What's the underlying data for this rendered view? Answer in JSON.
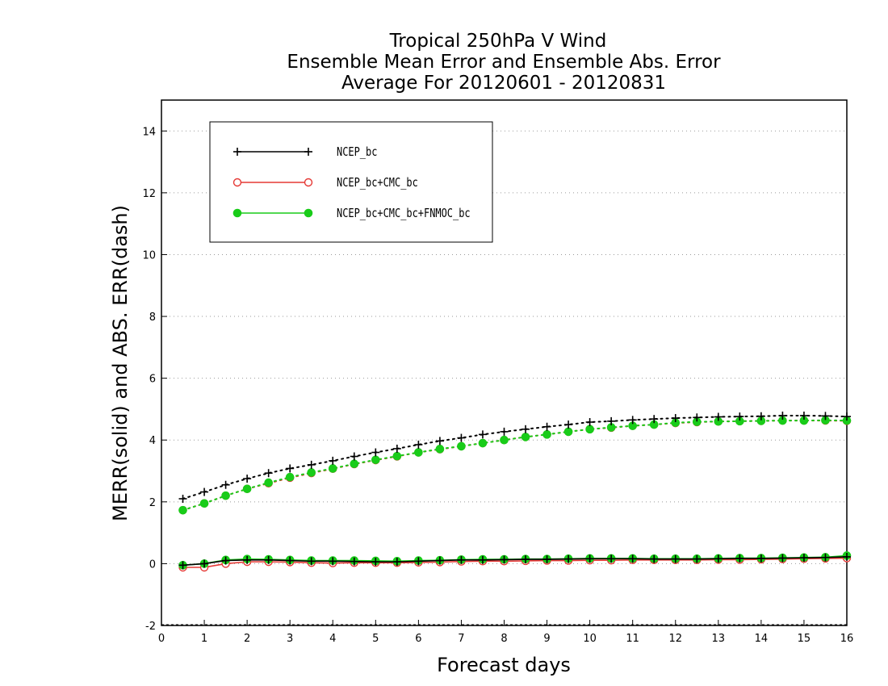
{
  "chart_data": {
    "type": "line",
    "title": [
      "Tropical 250hPa V Wind",
      "Ensemble Mean Error and Ensemble Abs. Error",
      "Average For 20120601 - 20120831"
    ],
    "xlabel": "Forecast days",
    "ylabel": "MERR(solid) and ABS. ERR(dash)",
    "xlim": [
      0,
      16
    ],
    "ylim": [
      -2,
      15
    ],
    "xticks": [
      0,
      1,
      2,
      3,
      4,
      5,
      6,
      7,
      8,
      9,
      10,
      11,
      12,
      13,
      14,
      15,
      16
    ],
    "yticks": [
      -2,
      0,
      2,
      4,
      6,
      8,
      10,
      12,
      14
    ],
    "grid": "horizontal dotted",
    "legend_position": "top-left",
    "x": [
      0.5,
      1,
      1.5,
      2,
      2.5,
      3,
      3.5,
      4,
      4.5,
      5,
      5.5,
      6,
      6.5,
      7,
      7.5,
      8,
      8.5,
      9,
      9.5,
      10,
      10.5,
      11,
      11.5,
      12,
      12.5,
      13,
      13.5,
      14,
      14.5,
      15,
      15.5,
      16
    ],
    "series": [
      {
        "name": "NCEP_bc",
        "color": "#000000",
        "marker": "plus",
        "merr": [
          -0.05,
          0.0,
          0.1,
          0.12,
          0.12,
          0.1,
          0.08,
          0.08,
          0.07,
          0.06,
          0.06,
          0.08,
          0.1,
          0.12,
          0.12,
          0.13,
          0.14,
          0.14,
          0.15,
          0.16,
          0.16,
          0.16,
          0.15,
          0.15,
          0.15,
          0.16,
          0.17,
          0.17,
          0.18,
          0.19,
          0.2,
          0.22
        ],
        "abs_err": [
          2.1,
          2.32,
          2.55,
          2.75,
          2.93,
          3.08,
          3.2,
          3.33,
          3.47,
          3.6,
          3.72,
          3.85,
          3.97,
          4.07,
          4.18,
          4.27,
          4.35,
          4.43,
          4.5,
          4.58,
          4.61,
          4.65,
          4.68,
          4.71,
          4.73,
          4.75,
          4.76,
          4.77,
          4.79,
          4.79,
          4.78,
          4.76
        ]
      },
      {
        "name": "NCEP_bc+CMC_bc",
        "color": "#e53935",
        "marker": "open-circle",
        "merr": [
          -0.12,
          -0.12,
          0.0,
          0.06,
          0.06,
          0.05,
          0.03,
          0.02,
          0.03,
          0.03,
          0.03,
          0.04,
          0.05,
          0.07,
          0.08,
          0.08,
          0.09,
          0.1,
          0.1,
          0.11,
          0.11,
          0.12,
          0.12,
          0.12,
          0.12,
          0.13,
          0.13,
          0.14,
          0.15,
          0.16,
          0.17,
          0.18
        ],
        "abs_err": [
          1.73,
          1.95,
          2.2,
          2.42,
          2.6,
          2.78,
          2.93,
          3.07,
          3.22,
          3.35,
          3.47,
          3.6,
          3.7,
          3.8,
          3.9,
          4.0,
          4.1,
          4.18,
          4.27,
          4.35,
          4.4,
          4.46,
          4.5,
          4.55,
          4.58,
          4.6,
          4.61,
          4.62,
          4.63,
          4.63,
          4.63,
          4.62
        ]
      },
      {
        "name": "NCEP_bc+CMC_bc+FNMOC_bc",
        "color": "#19cc19",
        "marker": "filled-circle",
        "merr": [
          -0.05,
          0.0,
          0.12,
          0.15,
          0.14,
          0.12,
          0.1,
          0.1,
          0.1,
          0.09,
          0.08,
          0.1,
          0.11,
          0.13,
          0.14,
          0.14,
          0.15,
          0.15,
          0.16,
          0.17,
          0.17,
          0.17,
          0.16,
          0.16,
          0.16,
          0.17,
          0.18,
          0.18,
          0.19,
          0.2,
          0.21,
          0.26
        ],
        "abs_err": [
          1.73,
          1.95,
          2.2,
          2.42,
          2.62,
          2.8,
          2.95,
          3.08,
          3.23,
          3.36,
          3.48,
          3.6,
          3.71,
          3.8,
          3.9,
          4.0,
          4.1,
          4.18,
          4.27,
          4.35,
          4.41,
          4.46,
          4.5,
          4.56,
          4.59,
          4.6,
          4.61,
          4.62,
          4.63,
          4.63,
          4.64,
          4.63
        ]
      }
    ]
  }
}
